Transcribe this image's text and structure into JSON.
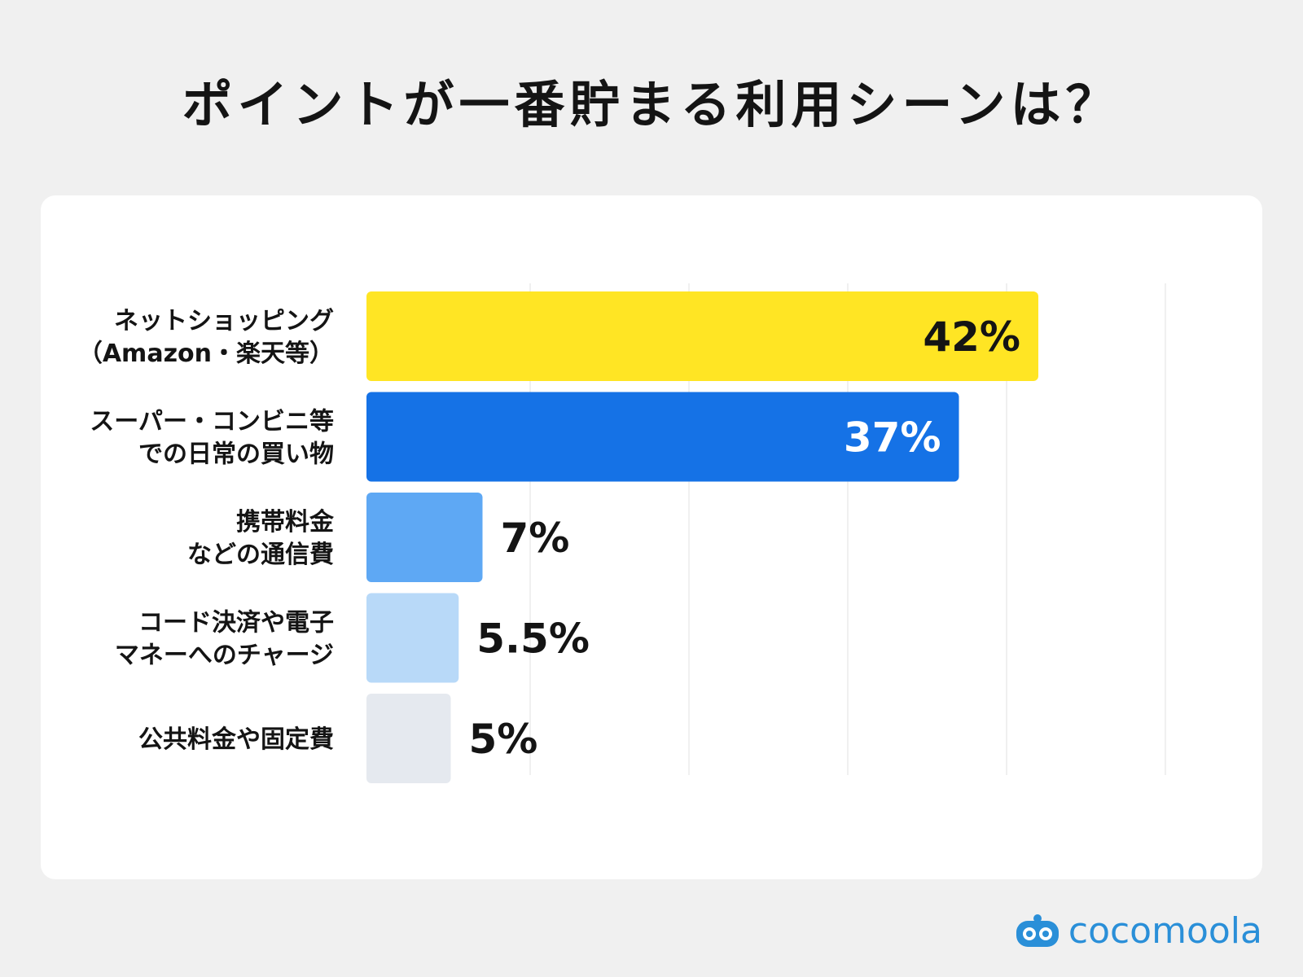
{
  "title": "ポイントが一番貯まる利用シーンは？",
  "chart_data": {
    "type": "bar",
    "orientation": "horizontal",
    "categories": [
      [
        "ネットショッピング",
        "（Amazon・楽天等）"
      ],
      [
        "スーパー・コンビニ等",
        "での日常の買い物"
      ],
      [
        "携帯料金",
        "などの通信費"
      ],
      [
        "コード決済や電子",
        "マネーへのチャージ"
      ],
      [
        "公共料金や固定費"
      ]
    ],
    "values": [
      42,
      37,
      7,
      5.5,
      5
    ],
    "value_labels": [
      "42%",
      "37%",
      "7%",
      "5.5%",
      "5%"
    ],
    "unit": "%",
    "xlim": [
      0,
      50
    ],
    "grid": true,
    "colors": [
      "#ffe524",
      "#1572e6",
      "#5ea8f4",
      "#b8d9f8",
      "#e5e9ef"
    ],
    "label_colors": [
      "#141414",
      "#ffffff",
      "#141414",
      "#141414",
      "#141414"
    ],
    "label_inside": [
      true,
      true,
      false,
      false,
      false
    ]
  },
  "logo": {
    "text": "cocomoola",
    "color": "#2a8fd8"
  }
}
